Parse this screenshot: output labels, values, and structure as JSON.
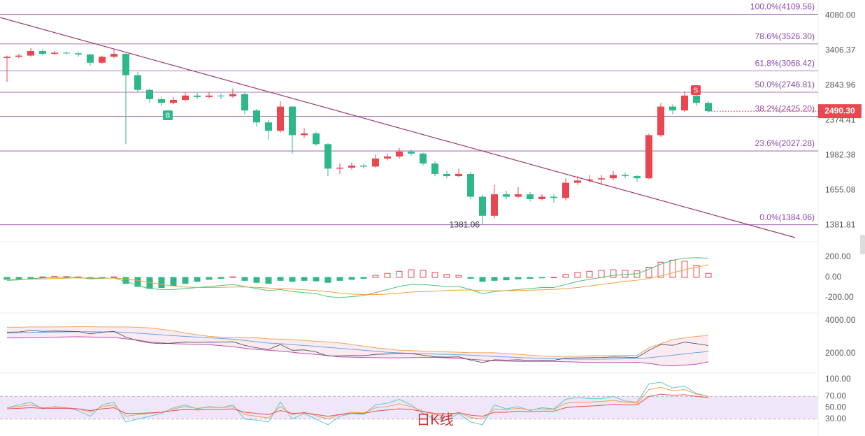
{
  "chart_data": [
    {
      "type": "candlestick",
      "log_scale": true,
      "ylim": [
        1300,
        4300
      ],
      "yticks": [
        {
          "value": 4080,
          "label": "4080.00"
        },
        {
          "value": 3406.37,
          "label": "3406.37"
        },
        {
          "value": 2843.96,
          "label": "2843.96"
        },
        {
          "value": 2374.41,
          "label": "2374.41"
        },
        {
          "value": 1982.38,
          "label": "1982.38"
        },
        {
          "value": 1655.08,
          "label": "1655.08"
        },
        {
          "value": 1381.81,
          "label": "1381.81"
        }
      ],
      "up_color": "#e8474f",
      "down_color": "#2eb889",
      "fib_color": "#8e4aa8",
      "fib_levels": [
        {
          "value": 4109.56,
          "label": "100.0%(4109.56)"
        },
        {
          "value": 3526.3,
          "label": "78.6%(3526.30)"
        },
        {
          "value": 3068.42,
          "label": "61.8%(3068.42)"
        },
        {
          "value": 2746.81,
          "label": "50.0%(2746.81)"
        },
        {
          "value": 2425.2,
          "label": "38.2%(2425.20)"
        },
        {
          "value": 2027.28,
          "label": "23.6%(2027.28)"
        },
        {
          "value": 1384.06,
          "label": "0.0%(1384.06)"
        }
      ],
      "last_price": {
        "value": 2490.3,
        "label": "2490.30"
      },
      "low_annotation": 1381.06,
      "signals": [
        "B",
        "S"
      ],
      "ohlc": [
        [
          3280,
          3320,
          2900,
          3300
        ],
        [
          3300,
          3350,
          3270,
          3320
        ],
        [
          3320,
          3450,
          3300,
          3400
        ],
        [
          3400,
          3440,
          3320,
          3350
        ],
        [
          3350,
          3400,
          3330,
          3370
        ],
        [
          3370,
          3390,
          3340,
          3360
        ],
        [
          3360,
          3380,
          3300,
          3340
        ],
        [
          3340,
          3350,
          3150,
          3200
        ],
        [
          3200,
          3320,
          3180,
          3300
        ],
        [
          3300,
          3420,
          3280,
          3350
        ],
        [
          3350,
          3360,
          2100,
          3000
        ],
        [
          3000,
          3050,
          2750,
          2780
        ],
        [
          2780,
          2800,
          2600,
          2650
        ],
        [
          2650,
          2680,
          2560,
          2600
        ],
        [
          2600,
          2680,
          2580,
          2640
        ],
        [
          2640,
          2750,
          2620,
          2700
        ],
        [
          2700,
          2740,
          2650,
          2680
        ],
        [
          2680,
          2750,
          2660,
          2700
        ],
        [
          2700,
          2730,
          2650,
          2690
        ],
        [
          2690,
          2800,
          2670,
          2720
        ],
        [
          2720,
          2740,
          2450,
          2500
        ],
        [
          2500,
          2520,
          2300,
          2350
        ],
        [
          2350,
          2380,
          2150,
          2250
        ],
        [
          2250,
          2620,
          2230,
          2550
        ],
        [
          2550,
          2560,
          2000,
          2200
        ],
        [
          2200,
          2280,
          2170,
          2220
        ],
        [
          2220,
          2240,
          2080,
          2100
        ],
        [
          2100,
          2110,
          1780,
          1850
        ],
        [
          1850,
          1900,
          1800,
          1860
        ],
        [
          1860,
          1910,
          1840,
          1880
        ],
        [
          1880,
          1900,
          1850,
          1870
        ],
        [
          1870,
          1990,
          1860,
          1950
        ],
        [
          1950,
          2000,
          1930,
          1970
        ],
        [
          1970,
          2060,
          1950,
          2020
        ],
        [
          2020,
          2040,
          1980,
          2000
        ],
        [
          2000,
          2010,
          1880,
          1900
        ],
        [
          1900,
          1920,
          1780,
          1800
        ],
        [
          1800,
          1830,
          1760,
          1780
        ],
        [
          1780,
          1850,
          1770,
          1800
        ],
        [
          1800,
          1820,
          1580,
          1600
        ],
        [
          1600,
          1620,
          1381.06,
          1450
        ],
        [
          1450,
          1700,
          1430,
          1620
        ],
        [
          1620,
          1650,
          1580,
          1600
        ],
        [
          1600,
          1680,
          1590,
          1620
        ],
        [
          1620,
          1640,
          1560,
          1580
        ],
        [
          1580,
          1620,
          1570,
          1600
        ],
        [
          1600,
          1620,
          1550,
          1590
        ],
        [
          1590,
          1760,
          1570,
          1720
        ],
        [
          1720,
          1780,
          1700,
          1740
        ],
        [
          1740,
          1790,
          1720,
          1750
        ],
        [
          1750,
          1790,
          1700,
          1760
        ],
        [
          1760,
          1830,
          1740,
          1790
        ],
        [
          1790,
          1810,
          1760,
          1780
        ],
        [
          1780,
          1790,
          1730,
          1760
        ],
        [
          1760,
          2220,
          1750,
          2200
        ],
        [
          2200,
          2600,
          2180,
          2550
        ],
        [
          2550,
          2580,
          2450,
          2500
        ],
        [
          2500,
          2760,
          2480,
          2700
        ],
        [
          2700,
          2750,
          2560,
          2600
        ],
        [
          2600,
          2620,
          2470,
          2490.3
        ]
      ]
    },
    {
      "type": "macd",
      "ylim": [
        -300,
        300
      ],
      "yticks": [
        {
          "value": 200,
          "label": "200.00"
        },
        {
          "value": 0,
          "label": "0.00"
        },
        {
          "value": -200,
          "label": "-200.00"
        }
      ],
      "up_color": "#e8474f",
      "down_color": "#2eb889",
      "dif_color": "#4ec27a",
      "dea_color": "#f0a040",
      "histogram": [
        -20,
        -15,
        -10,
        5,
        10,
        8,
        5,
        -10,
        -5,
        5,
        -60,
        -90,
        -110,
        -100,
        -80,
        -60,
        -40,
        -20,
        -10,
        5,
        -30,
        -50,
        -60,
        -30,
        -40,
        -30,
        -35,
        -50,
        -30,
        -20,
        -10,
        20,
        40,
        60,
        75,
        70,
        50,
        30,
        20,
        -10,
        -40,
        -30,
        -25,
        -15,
        -10,
        -5,
        0,
        30,
        50,
        60,
        70,
        75,
        70,
        65,
        100,
        150,
        170,
        160,
        120,
        40
      ],
      "dif": [
        -30,
        -25,
        -15,
        -5,
        0,
        5,
        0,
        -15,
        -10,
        -5,
        -40,
        -80,
        -110,
        -120,
        -120,
        -110,
        -100,
        -90,
        -80,
        -70,
        -90,
        -110,
        -130,
        -120,
        -140,
        -150,
        -160,
        -190,
        -200,
        -190,
        -180,
        -150,
        -120,
        -90,
        -70,
        -70,
        -80,
        -90,
        -90,
        -120,
        -160,
        -140,
        -130,
        -120,
        -110,
        -100,
        -100,
        -70,
        -40,
        -20,
        0,
        20,
        30,
        35,
        80,
        130,
        170,
        190,
        195,
        190
      ],
      "dea": [
        -20,
        -20,
        -18,
        -15,
        -12,
        -8,
        -5,
        -6,
        -7,
        -7,
        -15,
        -30,
        -50,
        -70,
        -85,
        -95,
        -100,
        -100,
        -98,
        -95,
        -95,
        -98,
        -105,
        -110,
        -115,
        -122,
        -130,
        -140,
        -155,
        -165,
        -170,
        -170,
        -165,
        -155,
        -145,
        -140,
        -135,
        -130,
        -125,
        -125,
        -130,
        -132,
        -132,
        -130,
        -127,
        -122,
        -118,
        -110,
        -100,
        -85,
        -70,
        -55,
        -40,
        -28,
        -10,
        15,
        45,
        75,
        100,
        125
      ]
    },
    {
      "type": "bollinger",
      "ylim": [
        1000,
        5000
      ],
      "yticks": [
        {
          "value": 4000,
          "label": "4000.00"
        },
        {
          "value": 2000,
          "label": "2000.00"
        }
      ],
      "upper_color": "#f4a460",
      "mid_color": "#6aa7e0",
      "lower_color": "#c04fb0",
      "fill_color": "#f7dde9",
      "price_color": "#444",
      "upper": [
        3600,
        3600,
        3620,
        3620,
        3620,
        3630,
        3640,
        3640,
        3620,
        3620,
        3620,
        3600,
        3560,
        3480,
        3380,
        3250,
        3150,
        3050,
        3000,
        2980,
        2980,
        2960,
        2900,
        2880,
        2850,
        2800,
        2750,
        2700,
        2650,
        2560,
        2450,
        2350,
        2280,
        2200,
        2180,
        2150,
        2120,
        2100,
        2080,
        2050,
        2050,
        2050,
        2000,
        1960,
        1900,
        1850,
        1820,
        1830,
        1840,
        1860,
        1870,
        1880,
        1890,
        1900,
        2350,
        2600,
        2850,
        2950,
        3050,
        3100
      ],
      "mid": [
        3250,
        3270,
        3290,
        3300,
        3310,
        3320,
        3330,
        3330,
        3320,
        3320,
        3280,
        3240,
        3190,
        3140,
        3090,
        3040,
        3000,
        2960,
        2920,
        2880,
        2800,
        2720,
        2640,
        2600,
        2540,
        2490,
        2440,
        2380,
        2320,
        2260,
        2200,
        2140,
        2080,
        2040,
        2010,
        1990,
        1970,
        1950,
        1930,
        1900,
        1860,
        1820,
        1790,
        1760,
        1730,
        1700,
        1680,
        1670,
        1660,
        1660,
        1660,
        1670,
        1680,
        1690,
        1740,
        1820,
        1900,
        1980,
        2060,
        2120
      ],
      "lower": [
        2950,
        2950,
        2960,
        2980,
        3000,
        3010,
        3020,
        3010,
        2990,
        2980,
        2900,
        2820,
        2700,
        2650,
        2600,
        2580,
        2560,
        2540,
        2480,
        2420,
        2320,
        2250,
        2200,
        2150,
        2080,
        2000,
        1950,
        1870,
        1800,
        1780,
        1760,
        1750,
        1740,
        1740,
        1750,
        1760,
        1760,
        1740,
        1700,
        1650,
        1600,
        1560,
        1540,
        1520,
        1520,
        1520,
        1520,
        1500,
        1480,
        1460,
        1450,
        1450,
        1460,
        1470,
        1400,
        1300,
        1250,
        1300,
        1350,
        1500
      ]
    },
    {
      "type": "rsi",
      "ylim": [
        10,
        100
      ],
      "yticks": [
        {
          "value": 100,
          "label": "100.00"
        },
        {
          "value": 70,
          "label": "70.00"
        },
        {
          "value": 50,
          "label": "50.00"
        },
        {
          "value": 30,
          "label": "30.00"
        }
      ],
      "band_color": "#efe6fa",
      "colors": [
        "#5bc8d8",
        "#f0a040",
        "#e05060"
      ],
      "lines": [
        [
          50,
          55,
          60,
          48,
          52,
          50,
          45,
          35,
          55,
          60,
          25,
          30,
          35,
          40,
          50,
          55,
          48,
          52,
          50,
          55,
          30,
          28,
          25,
          60,
          30,
          40,
          30,
          20,
          35,
          40,
          38,
          55,
          58,
          65,
          55,
          40,
          30,
          28,
          40,
          25,
          20,
          55,
          48,
          52,
          45,
          50,
          48,
          65,
          68,
          66,
          66,
          70,
          62,
          60,
          92,
          95,
          85,
          88,
          75,
          70
        ],
        [
          50,
          52,
          55,
          50,
          51,
          50,
          48,
          42,
          52,
          55,
          35,
          38,
          40,
          42,
          48,
          52,
          49,
          51,
          50,
          52,
          38,
          35,
          32,
          52,
          38,
          42,
          36,
          30,
          38,
          42,
          41,
          50,
          52,
          57,
          52,
          44,
          38,
          35,
          42,
          33,
          30,
          48,
          46,
          49,
          46,
          48,
          47,
          58,
          60,
          60,
          61,
          63,
          60,
          58,
          82,
          86,
          80,
          82,
          74,
          70
        ],
        [
          48,
          49,
          50,
          49,
          49,
          49,
          48,
          45,
          48,
          50,
          40,
          40,
          41,
          42,
          45,
          47,
          46,
          47,
          47,
          48,
          42,
          40,
          38,
          45,
          40,
          41,
          38,
          35,
          38,
          40,
          40,
          44,
          46,
          48,
          47,
          43,
          40,
          39,
          41,
          37,
          35,
          42,
          42,
          44,
          43,
          44,
          44,
          50,
          52,
          53,
          54,
          56,
          55,
          55,
          70,
          74,
          72,
          73,
          70,
          68
        ]
      ],
      "watermark": "日K线"
    }
  ]
}
